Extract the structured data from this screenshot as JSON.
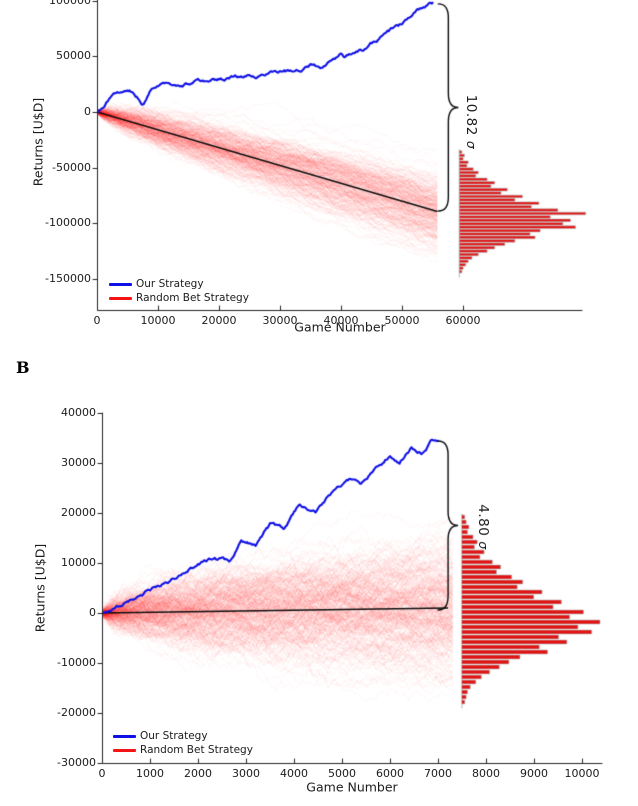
{
  "figure_labels": {
    "panel_b": "B"
  },
  "colors": {
    "our_strategy_blue": "#0f10e6",
    "random_bet_red": "#f31414",
    "histogram_fill": "#e31010",
    "histogram_edge": "#b0b0b0",
    "mean_line_black": "#0a0a0a",
    "axis": "#222222",
    "text": "#1c1c1c"
  },
  "chart_data": [
    {
      "id": "A",
      "type": "line",
      "title": "",
      "xlabel": "Game Number",
      "ylabel": "Returns [U$D]",
      "xlim": [
        0,
        79500
      ],
      "ylim": [
        -178000,
        100700
      ],
      "grid": false,
      "x_ticks": [
        0,
        10000,
        20000,
        30000,
        40000,
        50000,
        60000
      ],
      "y_ticks": [
        100000,
        50000,
        0,
        -50000,
        -100000,
        -150000
      ],
      "legend": {
        "position": "lower left",
        "entries": [
          {
            "label": "Our Strategy",
            "color": "#0f10e6"
          },
          {
            "label": "Random Bet Strategy",
            "color": "#f31414"
          }
        ]
      },
      "series": [
        {
          "name": "Our Strategy",
          "type": "line",
          "color": "#0f10e6",
          "points": [
            [
              0,
              0
            ],
            [
              1000,
              4000
            ],
            [
              2000,
              11000
            ],
            [
              3000,
              15500
            ],
            [
              4600,
              19800
            ],
            [
              5900,
              18000
            ],
            [
              7100,
              10800
            ],
            [
              7500,
              8100
            ],
            [
              8700,
              19800
            ],
            [
              10300,
              22500
            ],
            [
              12800,
              24300
            ],
            [
              15300,
              26100
            ],
            [
              18500,
              28800
            ],
            [
              21800,
              31500
            ],
            [
              25100,
              32400
            ],
            [
              26200,
              30600
            ],
            [
              28400,
              35100
            ],
            [
              30800,
              36900
            ],
            [
              33300,
              37800
            ],
            [
              34900,
              42300
            ],
            [
              36600,
              40500
            ],
            [
              38200,
              45000
            ],
            [
              39900,
              51200
            ],
            [
              40700,
              48600
            ],
            [
              42300,
              53900
            ],
            [
              44000,
              57500
            ],
            [
              45600,
              62900
            ],
            [
              47200,
              69200
            ],
            [
              48900,
              75500
            ],
            [
              50500,
              80900
            ],
            [
              52200,
              89900
            ],
            [
              53800,
              95300
            ],
            [
              55100,
              98000
            ]
          ]
        },
        {
          "name": "Random Bet Strategy",
          "type": "ensemble",
          "color": "#f31414",
          "n_paths": 330,
          "n_steps": 240,
          "end_game": 55800,
          "mean_end": -89500,
          "sigma_end": 17500,
          "seed": 11
        },
        {
          "name": "Random Bet Mean",
          "type": "line",
          "color": "#0a0a0a",
          "points": [
            [
              0,
              0
            ],
            [
              55800,
              -89500
            ]
          ]
        }
      ],
      "histogram": {
        "orientation": "horizontal_bars_right",
        "baseline_game": 59400,
        "value_top": -36000,
        "value_bottom": -143500,
        "max_length_games": 20700,
        "bars_norm": [
          0.02,
          0.04,
          0.03,
          0.07,
          0.06,
          0.11,
          0.15,
          0.13,
          0.22,
          0.28,
          0.25,
          0.38,
          0.33,
          0.5,
          0.44,
          0.63,
          0.57,
          0.78,
          1.0,
          0.72,
          0.88,
          0.82,
          0.92,
          0.64,
          0.56,
          0.6,
          0.44,
          0.36,
          0.28,
          0.22,
          0.15,
          0.1,
          0.07,
          0.05,
          0.03,
          0.02
        ]
      },
      "annotation": {
        "text": "10.82 σ",
        "value": "10.82",
        "symbol": "σ",
        "brace": {
          "x_game": 57600,
          "value_top": 97200,
          "value_bottom": -89000
        },
        "text_pos": {
          "game": 61300,
          "value": -9000
        }
      }
    },
    {
      "id": "B",
      "type": "line",
      "title": "",
      "xlabel": "Game Number",
      "ylabel": "Returns [U$D]",
      "xlim": [
        0,
        10400
      ],
      "ylim": [
        -30000,
        40000
      ],
      "grid": false,
      "x_ticks": [
        0,
        1000,
        2000,
        3000,
        4000,
        5000,
        6000,
        7000,
        8000,
        9000,
        10000
      ],
      "y_ticks": [
        40000,
        30000,
        20000,
        10000,
        0,
        -10000,
        -20000,
        -30000
      ],
      "legend": {
        "position": "lower left",
        "entries": [
          {
            "label": "Our Strategy",
            "color": "#0f10e6"
          },
          {
            "label": "Random Bet Strategy",
            "color": "#f31414"
          }
        ]
      },
      "series": [
        {
          "name": "Our Strategy",
          "type": "line",
          "color": "#0f10e6",
          "points": [
            [
              0,
              0
            ],
            [
              600,
              2600
            ],
            [
              1200,
              5600
            ],
            [
              1800,
              8600
            ],
            [
              2350,
              11000
            ],
            [
              2650,
              10200
            ],
            [
              2900,
              14600
            ],
            [
              3200,
              13600
            ],
            [
              3500,
              17600
            ],
            [
              3800,
              16600
            ],
            [
              4100,
              21600
            ],
            [
              4450,
              20200
            ],
            [
              4750,
              23600
            ],
            [
              5200,
              26600
            ],
            [
              5400,
              25400
            ],
            [
              5700,
              29000
            ],
            [
              6000,
              31600
            ],
            [
              6200,
              30200
            ],
            [
              6450,
              33000
            ],
            [
              6650,
              32200
            ],
            [
              6850,
              34400
            ],
            [
              7000,
              34700
            ]
          ]
        },
        {
          "name": "Random Bet Strategy",
          "type": "ensemble",
          "color": "#f31414",
          "n_paths": 330,
          "n_steps": 240,
          "end_game": 7300,
          "mean_end": 800,
          "sigma_end": 7000,
          "seed": 23
        },
        {
          "name": "Random Bet Mean",
          "type": "line",
          "color": "#0a0a0a",
          "points": [
            [
              0,
              0
            ],
            [
              7200,
              1000
            ]
          ]
        }
      ],
      "histogram": {
        "orientation": "horizontal_bars_right",
        "baseline_game": 7500,
        "value_top": 19200,
        "value_bottom": -17800,
        "max_length_games": 2875,
        "bars_norm": [
          0.02,
          0.03,
          0.05,
          0.04,
          0.08,
          0.11,
          0.09,
          0.16,
          0.13,
          0.22,
          0.28,
          0.25,
          0.36,
          0.44,
          0.4,
          0.58,
          0.52,
          0.72,
          0.66,
          0.88,
          0.78,
          1.0,
          0.84,
          0.94,
          0.7,
          0.76,
          0.56,
          0.62,
          0.42,
          0.34,
          0.27,
          0.2,
          0.14,
          0.1,
          0.06,
          0.04,
          0.03,
          0.02
        ]
      },
      "annotation": {
        "text": "4.80 σ",
        "value": "4.80",
        "symbol": "σ",
        "brace": {
          "x_game": 7210,
          "value_top": 34400,
          "value_bottom": 600
        },
        "text_pos": {
          "game": 7940,
          "value": 17200
        }
      }
    }
  ]
}
